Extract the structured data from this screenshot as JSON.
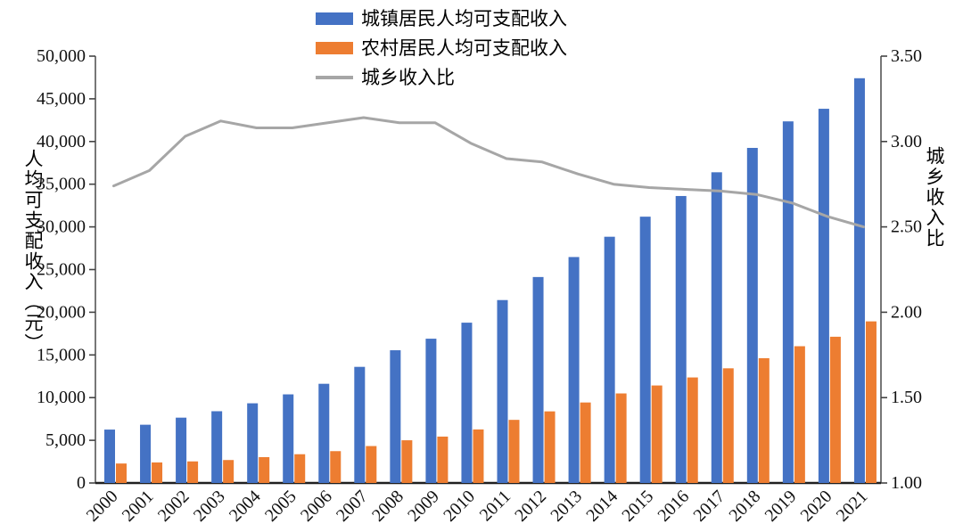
{
  "chart_data": {
    "type": "bar",
    "subtype": "grouped-bars-with-line",
    "title": "",
    "categories": [
      "2000",
      "2001",
      "2002",
      "2003",
      "2004",
      "2005",
      "2006",
      "2007",
      "2008",
      "2009",
      "2010",
      "2011",
      "2012",
      "2013",
      "2014",
      "2015",
      "2016",
      "2017",
      "2018",
      "2019",
      "2020",
      "2021"
    ],
    "series": [
      {
        "name": "城镇居民人均可支配收入",
        "type": "bar",
        "axis": "left",
        "color": "#4472C4",
        "values": [
          6256,
          6824,
          7653,
          8406,
          9335,
          10382,
          11620,
          13603,
          15549,
          16901,
          18779,
          21427,
          24127,
          26467,
          28844,
          31195,
          33616,
          36396,
          39251,
          42359,
          43834,
          47412
        ]
      },
      {
        "name": "农村居民人均可支配收入",
        "type": "bar",
        "axis": "left",
        "color": "#ED7D31",
        "values": [
          2282,
          2407,
          2529,
          2690,
          3027,
          3370,
          3731,
          4327,
          5004,
          5435,
          6272,
          7394,
          8389,
          9430,
          10489,
          11422,
          12363,
          13432,
          14617,
          16021,
          17131,
          18931
        ]
      },
      {
        "name": "城乡收入比",
        "type": "line",
        "axis": "right",
        "color": "#A6A6A6",
        "values": [
          2.74,
          2.83,
          3.03,
          3.12,
          3.08,
          3.08,
          3.11,
          3.14,
          3.11,
          3.11,
          2.99,
          2.9,
          2.88,
          2.81,
          2.75,
          2.73,
          2.72,
          2.71,
          2.69,
          2.64,
          2.56,
          2.5
        ]
      }
    ],
    "left_axis": {
      "title": "人均可支配收入（元）",
      "min": 0,
      "max": 50000,
      "step": 5000,
      "tick_format": "thousands"
    },
    "right_axis": {
      "title": "城乡收入比",
      "min": 1.0,
      "max": 3.5,
      "step": 0.5,
      "tick_format": "2dp"
    },
    "x_axis": {
      "tick_rotation": -45
    },
    "legend_position": "top-center",
    "grid": false,
    "colors": {
      "axis_line": "#777777",
      "baseline": "#1f1f1f",
      "tick": "#444444",
      "text": "#111111"
    }
  }
}
